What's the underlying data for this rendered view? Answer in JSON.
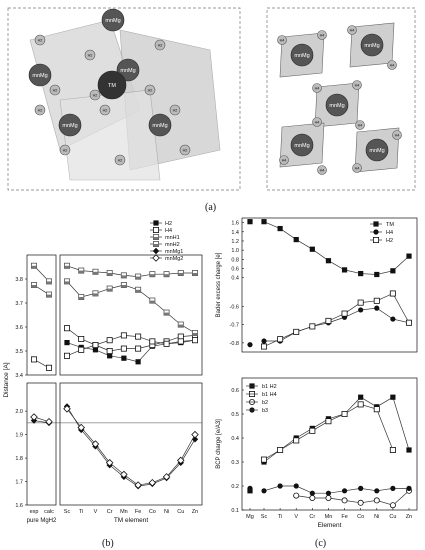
{
  "panel_labels": {
    "a": "(a)",
    "b": "(b)",
    "c": "(c)"
  },
  "structure_left": {
    "atom_labels": [
      "mnMg",
      "mnMg",
      "mnMg",
      "mnMg",
      "mnMg",
      "mnMg",
      "TM",
      "H2",
      "H2",
      "H2",
      "H2",
      "H2",
      "H2",
      "H2",
      "H2",
      "H2",
      "H2",
      "H2",
      "H2"
    ]
  },
  "structure_right": {
    "atom_labels": [
      "mnMg",
      "mnMg",
      "mnMg",
      "mnMg",
      "mnMg",
      "H4",
      "H4",
      "H4",
      "H4",
      "H4",
      "H4",
      "H4",
      "H4",
      "H4",
      "H4",
      "H4",
      "H4"
    ]
  },
  "chart_data": [
    {
      "type": "line",
      "panel": "b",
      "title": "",
      "xlabel": "TM element",
      "ylabel": "Distance [A]",
      "left_categories": [
        "exp",
        "calc"
      ],
      "left_group_label": "pure MgH2",
      "categories": [
        "Sc",
        "Ti",
        "V",
        "Cr",
        "Mn",
        "Fe",
        "Co",
        "Ni",
        "Cu",
        "Zn"
      ],
      "top_ylim": [
        3.4,
        3.9
      ],
      "top_yticks": [
        3.4,
        3.5,
        3.6,
        3.7,
        3.8
      ],
      "bottom_ylim": [
        1.6,
        2.12
      ],
      "bottom_yticks": [
        1.6,
        1.7,
        1.8,
        1.9,
        2.0
      ],
      "reference_line": 1.95,
      "legend": "top-right",
      "series": [
        {
          "name": "H2",
          "marker": "filled-square",
          "values": [
            3.535,
            3.515,
            3.505,
            3.48,
            3.47,
            3.455,
            3.52,
            3.53,
            3.535,
            3.545
          ]
        },
        {
          "name": "H4",
          "marker": "open-square",
          "values": [
            3.595,
            3.55,
            3.525,
            3.5,
            3.51,
            3.51,
            3.525,
            3.54,
            3.56,
            3.565
          ]
        },
        {
          "name": "mnH1",
          "marker": "half-square",
          "left_values": [
            3.855,
            3.79
          ],
          "values": [
            3.855,
            3.835,
            3.83,
            3.825,
            3.815,
            3.81,
            3.82,
            3.82,
            3.825,
            3.825
          ]
        },
        {
          "name": "mnH2",
          "marker": "half-square",
          "left_values": [
            3.775,
            3.735
          ],
          "values": [
            3.79,
            3.725,
            3.74,
            3.76,
            3.775,
            3.755,
            3.71,
            3.66,
            3.61,
            3.575
          ]
        },
        {
          "name": "mnMg1",
          "marker": "filled-diamond",
          "left_values": [
            1.96,
            1.95
          ],
          "values": [
            2.02,
            1.92,
            1.85,
            1.77,
            1.72,
            1.68,
            1.69,
            1.715,
            1.78,
            1.88
          ]
        },
        {
          "name": "mnMg2",
          "marker": "open-diamond",
          "left_values": [
            1.975,
            1.955
          ],
          "values": [
            2.01,
            1.93,
            1.86,
            1.78,
            1.73,
            1.685,
            1.695,
            1.72,
            1.79,
            1.9
          ]
        },
        {
          "name": "",
          "marker": "open-square",
          "left_values": [
            3.465,
            3.43
          ],
          "values": [
            3.48,
            3.505,
            3.525,
            3.545,
            3.565,
            3.56,
            3.54,
            3.53,
            3.54,
            3.545
          ]
        }
      ]
    },
    {
      "type": "line",
      "panel": "c-top",
      "title": "",
      "xlabel": "",
      "ylabel": "Bader excess charge [e]",
      "categories": [
        "Mg",
        "Sc",
        "Ti",
        "V",
        "Cr",
        "Mn",
        "Fe",
        "Co",
        "Ni",
        "Cu",
        "Zn"
      ],
      "top_ylim": [
        0.35,
        1.7
      ],
      "top_yticks": [
        0.4,
        0.6,
        0.8,
        1.0,
        1.2,
        1.4,
        1.6
      ],
      "bottom_ylim": [
        -0.85,
        -0.5
      ],
      "bottom_yticks": [
        -0.8,
        -0.7,
        -0.6
      ],
      "legend": "top-right",
      "series": [
        {
          "name": "TM",
          "marker": "filled-square",
          "values": [
            1.62,
            1.62,
            1.47,
            1.23,
            1.02,
            0.77,
            0.57,
            0.49,
            0.47,
            0.55,
            0.87
          ]
        },
        {
          "name": "H4",
          "marker": "filled-circle",
          "values": [
            -0.81,
            -0.79,
            -0.79,
            -0.74,
            -0.71,
            -0.69,
            -0.66,
            -0.62,
            -0.61,
            -0.67,
            -0.69
          ]
        },
        {
          "name": "H2",
          "marker": "open-square",
          "values": [
            null,
            -0.82,
            -0.78,
            -0.74,
            -0.71,
            -0.68,
            -0.64,
            -0.58,
            -0.57,
            -0.53,
            -0.69
          ]
        }
      ]
    },
    {
      "type": "line",
      "panel": "c-bottom",
      "title": "",
      "xlabel": "Element",
      "ylabel": "BCP charge [e/A3]",
      "categories": [
        "Mg",
        "Sc",
        "Ti",
        "V",
        "Cr",
        "Mn",
        "Fe",
        "Co",
        "Ni",
        "Cu",
        "Zn"
      ],
      "ylim": [
        0.1,
        0.65
      ],
      "yticks": [
        0.1,
        0.2,
        0.3,
        0.4,
        0.5,
        0.6
      ],
      "legend": "top-left",
      "series": [
        {
          "name": "b1 H2",
          "marker": "filled-square",
          "values": [
            0.18,
            0.3,
            null,
            0.4,
            0.44,
            0.48,
            0.5,
            0.57,
            0.53,
            0.57,
            0.35
          ]
        },
        {
          "name": "b1 H4",
          "marker": "open-square",
          "values": [
            null,
            0.31,
            0.35,
            0.39,
            0.43,
            0.47,
            0.5,
            0.54,
            0.52,
            0.35,
            null
          ]
        },
        {
          "name": "b2",
          "marker": "open-circle",
          "values": [
            null,
            null,
            null,
            0.16,
            0.15,
            0.15,
            0.14,
            0.13,
            0.14,
            0.12,
            0.18
          ]
        },
        {
          "name": "b3",
          "marker": "filled-circle",
          "values": [
            0.19,
            0.18,
            0.2,
            0.2,
            0.17,
            0.17,
            0.18,
            0.19,
            0.18,
            0.19,
            0.19
          ]
        }
      ]
    }
  ]
}
